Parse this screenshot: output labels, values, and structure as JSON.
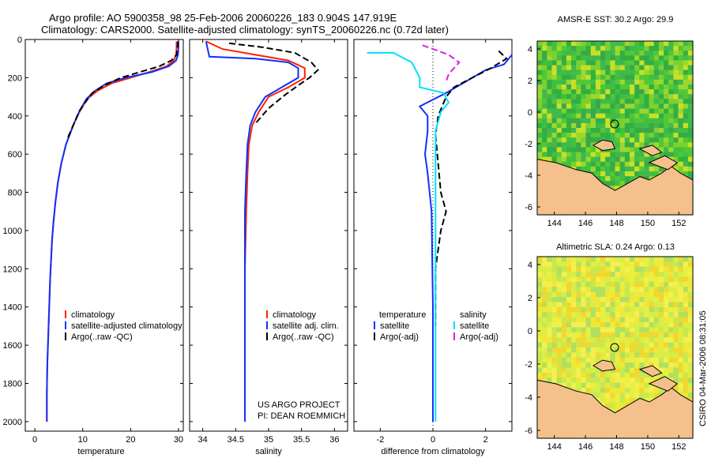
{
  "title": {
    "line1": "Argo profile: AO 5900358_98 25-Feb-2006 20060226_183 0.904S 147.919E",
    "line2": "Climatology: CARS2000. Satellite-adjusted climatology: synTS_20060226.nc (0.72d later)"
  },
  "colors": {
    "clim": "#ff2200",
    "sat": "#1030ff",
    "argo": "#000000",
    "sat_sal_diff": "#00e0ff",
    "argo_sal_diff": "#e020e0",
    "land": "#f4c08c",
    "sst_green": "#40c040",
    "sla_yellow": "#e8f040"
  },
  "chart_data": [
    {
      "type": "line",
      "name": "temperature",
      "xlabel": "temperature",
      "xlim": [
        -2,
        31
      ],
      "ylim": [
        2050,
        0
      ],
      "xticks": [
        "0",
        "10",
        "20",
        "30"
      ],
      "yticks": [
        "0",
        "200",
        "400",
        "600",
        "800",
        "1000",
        "1200",
        "1400",
        "1600",
        "1800",
        "2000"
      ],
      "legend": [
        "climatology",
        "satellite-adjusted climatology",
        "Argo(..raw -QC)"
      ],
      "series": [
        {
          "name": "climatology",
          "color": "clim",
          "style": "solid",
          "x": [
            29.6,
            29.6,
            29.5,
            29.0,
            27.5,
            24,
            20,
            16,
            13,
            11,
            9.5,
            8,
            6.5,
            5.5,
            4.8,
            4.3,
            3.9,
            3.6,
            3.4,
            3.2,
            3.0,
            2.8,
            2.6,
            2.5,
            2.5
          ],
          "y": [
            10,
            40,
            80,
            110,
            140,
            170,
            200,
            230,
            270,
            310,
            370,
            450,
            550,
            650,
            750,
            850,
            950,
            1050,
            1150,
            1250,
            1400,
            1550,
            1700,
            1850,
            2000
          ]
        },
        {
          "name": "satellite",
          "color": "sat",
          "style": "solid",
          "x": [
            30.0,
            30.0,
            29.9,
            29.5,
            28,
            24.5,
            19,
            15,
            12.5,
            10.8,
            9.4,
            8,
            6.5,
            5.5,
            4.8,
            4.3,
            3.9,
            3.6,
            3.4,
            3.2,
            3.0,
            2.8,
            2.6,
            2.5,
            2.5
          ],
          "y": [
            10,
            40,
            80,
            110,
            140,
            170,
            200,
            230,
            270,
            310,
            370,
            450,
            550,
            650,
            750,
            850,
            950,
            1050,
            1150,
            1250,
            1400,
            1550,
            1700,
            1850,
            2000
          ]
        },
        {
          "name": "argo",
          "color": "argo",
          "style": "dash",
          "x": [
            29.9,
            29.8,
            29.6,
            28.5,
            26,
            22,
            18,
            14.5,
            12,
            10.5,
            9.2,
            8,
            6.8
          ],
          "y": [
            10,
            40,
            80,
            110,
            140,
            170,
            200,
            240,
            280,
            330,
            380,
            450,
            520
          ]
        }
      ]
    },
    {
      "type": "line",
      "name": "salinity",
      "xlabel": "salinity",
      "xlim": [
        33.8,
        36.2
      ],
      "ylim": [
        2050,
        0
      ],
      "xticks": [
        "34",
        "34.5",
        "35",
        "35.5",
        "36"
      ],
      "legend": [
        "climatology",
        "satellite adj. clim.",
        "Argo(..raw -QC)"
      ],
      "series": [
        {
          "name": "climatology",
          "color": "clim",
          "style": "solid",
          "x": [
            34.05,
            34.3,
            34.8,
            35.3,
            35.55,
            35.55,
            35.3,
            35.0,
            34.85,
            34.75,
            34.7,
            34.68,
            34.66,
            34.64,
            34.64,
            34.64
          ],
          "y": [
            10,
            50,
            80,
            110,
            150,
            200,
            250,
            300,
            380,
            450,
            550,
            700,
            900,
            1200,
            1600,
            2000
          ]
        },
        {
          "name": "satellite",
          "color": "sat",
          "style": "solid",
          "x": [
            34.05,
            34.1,
            34.8,
            35.3,
            35.45,
            35.45,
            35.2,
            34.95,
            34.8,
            34.72,
            34.68,
            34.66,
            34.64,
            34.64,
            34.64,
            34.64
          ],
          "y": [
            10,
            90,
            100,
            120,
            150,
            200,
            250,
            300,
            380,
            450,
            550,
            700,
            900,
            1200,
            1600,
            2000
          ]
        },
        {
          "name": "argo",
          "color": "argo",
          "style": "dash",
          "x": [
            34.4,
            34.9,
            35.4,
            35.65,
            35.75,
            35.62,
            35.45,
            35.25,
            35.0,
            34.8
          ],
          "y": [
            20,
            40,
            70,
            120,
            160,
            200,
            240,
            290,
            360,
            440
          ]
        }
      ]
    },
    {
      "type": "line",
      "name": "difference",
      "xlabel": "difference from climatology",
      "xlim": [
        -3.0,
        3.0
      ],
      "ylim": [
        2050,
        0
      ],
      "xticks": [
        "-2",
        "0",
        "2"
      ],
      "legend_left": [
        "temperature",
        "satellite",
        "Argo(-adj)"
      ],
      "legend_right": [
        "salinity",
        "satellite",
        "Argo(-adj)"
      ],
      "series": [
        {
          "name": "temp satellite",
          "color": "sat",
          "style": "solid",
          "x": [
            3,
            2.7,
            2.0,
            1.5,
            0.5,
            -0.5,
            -0.2,
            -0.2,
            -0.3,
            -0.2,
            -0.05,
            0,
            0
          ],
          "y": [
            80,
            130,
            160,
            200,
            280,
            350,
            400,
            480,
            600,
            700,
            900,
            1400,
            2000
          ]
        },
        {
          "name": "temp argo",
          "color": "argo",
          "style": "dash",
          "x": [
            2.5,
            2.8,
            2.2,
            1.5,
            0.8,
            0.5,
            0.2,
            0.1,
            0.3,
            0.5,
            0.3,
            0.1,
            0.1
          ],
          "y": [
            60,
            100,
            150,
            200,
            250,
            300,
            400,
            500,
            800,
            900,
            1000,
            1200,
            1500
          ]
        },
        {
          "name": "sal satellite",
          "color": "sat_sal_diff",
          "style": "solid",
          "x": [
            -2.5,
            -1.5,
            -0.8,
            -0.5,
            -0.5,
            0.4,
            0.6,
            0.3,
            0.1,
            0.1,
            0.1
          ],
          "y": [
            70,
            70,
            120,
            200,
            250,
            280,
            330,
            380,
            480,
            1000,
            2000
          ]
        },
        {
          "name": "sal argo",
          "color": "argo_sal_diff",
          "style": "dash",
          "x": [
            -0.4,
            0.2,
            0.6,
            1.0,
            0.8,
            0.6,
            0.5
          ],
          "y": [
            30,
            60,
            80,
            120,
            150,
            180,
            220
          ]
        }
      ],
      "credit": [
        "US ARGO PROJECT",
        "PI: DEAN ROEMMICH"
      ]
    },
    {
      "type": "heatmap",
      "name": "sst",
      "title": "AMSR-E SST: 30.2 Argo: 29.9",
      "xticks": [
        "144",
        "146",
        "148",
        "150",
        "152"
      ],
      "yticks": [
        "4",
        "2",
        "0",
        "-2",
        "-4",
        "-6"
      ]
    },
    {
      "type": "heatmap",
      "name": "sla",
      "title": "Altimetric SLA: 0.24 Argo: 0.13",
      "xticks": [
        "144",
        "146",
        "148",
        "150",
        "152"
      ],
      "yticks": [
        "4",
        "2",
        "0",
        "-2",
        "-4",
        "-6"
      ]
    }
  ],
  "side_label": "CSIRO 04-Mar-2006 08:31:05"
}
